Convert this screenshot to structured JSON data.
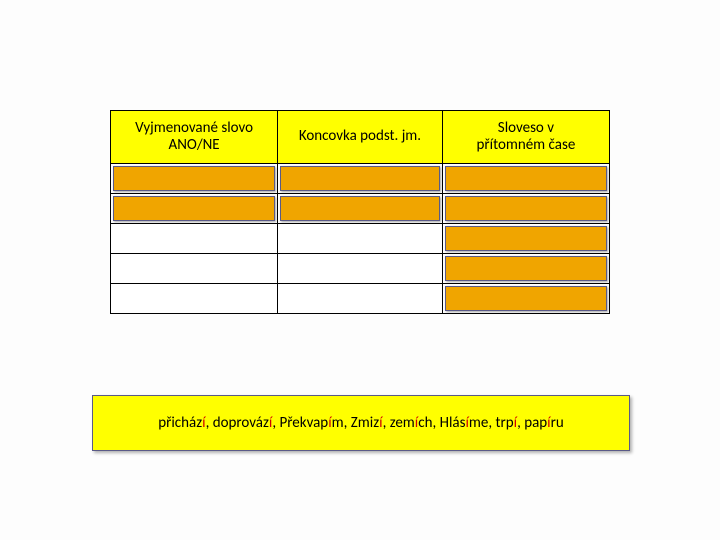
{
  "table": {
    "headers": [
      "Vyjmenované slovo\nANO/NE",
      "Koncovka podst. jm.",
      "Sloveso v\npřítomném čase"
    ],
    "col_widths": [
      "33.5%",
      "33%",
      "33.5%"
    ],
    "header_bg": "#ffff00",
    "cover_bg": "#f0a500",
    "cover_border": "#5a5a88",
    "rows": 5,
    "cover_map": [
      [
        true,
        true,
        true
      ],
      [
        true,
        true,
        true
      ],
      [
        false,
        false,
        true
      ],
      [
        false,
        false,
        true
      ],
      [
        false,
        false,
        true
      ]
    ]
  },
  "answer": {
    "bg": "#ffff00",
    "border": "#5a5a88",
    "segments": [
      {
        "t": "přicház",
        "red": false
      },
      {
        "t": "í",
        "red": true
      },
      {
        "t": ", ",
        "red": false
      },
      {
        "t": "doprováz",
        "red": false
      },
      {
        "t": "í",
        "red": true
      },
      {
        "t": ", ",
        "red": false
      },
      {
        "t": "Překvap",
        "red": false
      },
      {
        "t": "í",
        "red": true
      },
      {
        "t": "m, ",
        "red": false
      },
      {
        "t": "Zmiz",
        "red": false
      },
      {
        "t": "í",
        "red": true
      },
      {
        "t": ", ",
        "red": false
      },
      {
        "t": "zem",
        "red": false
      },
      {
        "t": "í",
        "red": true
      },
      {
        "t": "ch, ",
        "red": false
      },
      {
        "t": "Hlás",
        "red": false
      },
      {
        "t": "í",
        "red": true
      },
      {
        "t": "me, ",
        "red": false
      },
      {
        "t": "trp",
        "red": false
      },
      {
        "t": "í",
        "red": true
      },
      {
        "t": ", ",
        "red": false
      },
      {
        "t": "pap",
        "red": false
      },
      {
        "t": "í",
        "red": true
      },
      {
        "t": "ru",
        "red": false
      }
    ]
  },
  "colors": {
    "page_bg": "#fdfdfd",
    "text": "#000000",
    "highlight": "#d00000"
  }
}
